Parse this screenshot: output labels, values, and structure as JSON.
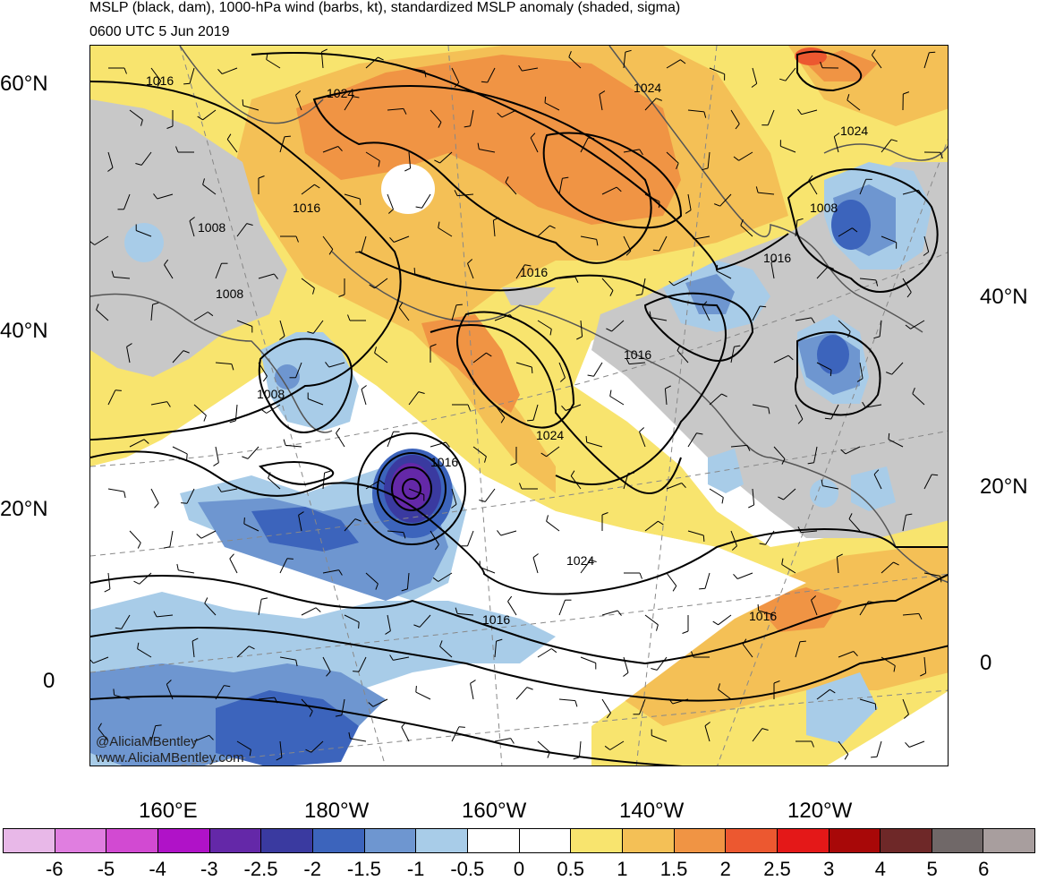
{
  "title": "MSLP (black, dam), 1000-hPa wind (barbs, kt), standardized MSLP anomaly (shaded, sigma)",
  "subtitle": "0600 UTC 5 Jun 2019",
  "credit": {
    "handle": "@AliciaMBentley",
    "url": "www.AliciaMBentley.com"
  },
  "lat_labels_left": [
    "60°N",
    "40°N",
    "20°N",
    "0"
  ],
  "lat_labels_right": [
    "40°N",
    "20°N",
    "0"
  ],
  "lon_labels": [
    "160°E",
    "180°W",
    "160°W",
    "140°W",
    "120°W"
  ],
  "contour_labels": [
    "1016",
    "1024",
    "1024",
    "1024",
    "1016",
    "1008",
    "1016",
    "1008",
    "1008",
    "1016",
    "1016",
    "1008",
    "1024",
    "1016",
    "1024",
    "1016",
    "1016"
  ],
  "colorbar": {
    "colors": [
      "#e8b8e8",
      "#e07ee0",
      "#d24ad2",
      "#b012c8",
      "#6428a8",
      "#3a3aa0",
      "#3c64bc",
      "#6e96d0",
      "#a8cce8",
      "#ffffff",
      "#ffffff",
      "#f8e46e",
      "#f4c056",
      "#f09444",
      "#ec5830",
      "#e41818",
      "#a80808",
      "#6e2828",
      "#706868",
      "#a89e9e"
    ],
    "labels": [
      "-6",
      "-5",
      "-4",
      "-3",
      "-2.5",
      "-2",
      "-1.5",
      "-1",
      "-0.5",
      "0",
      "0.5",
      "1",
      "1.5",
      "2",
      "2.5",
      "3",
      "4",
      "5",
      "6"
    ]
  },
  "palette": {
    "land_line": "#555555",
    "contour": "#000000",
    "grid": "#888888"
  }
}
